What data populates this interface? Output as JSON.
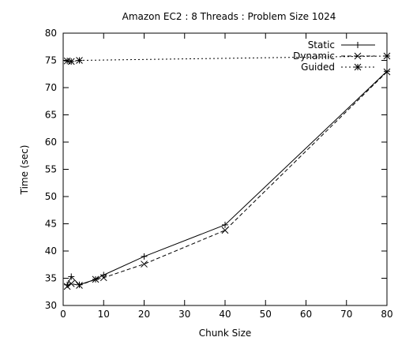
{
  "chart_data": {
    "type": "line",
    "title": "Amazon EC2 : 8 Threads : Problem Size 1024",
    "xlabel": "Chunk Size",
    "ylabel": "Time (sec)",
    "xlim": [
      0,
      80
    ],
    "ylim": [
      30,
      80
    ],
    "xticks": [
      0,
      10,
      20,
      30,
      40,
      50,
      60,
      70,
      80
    ],
    "yticks": [
      30,
      35,
      40,
      45,
      50,
      55,
      60,
      65,
      70,
      75,
      80
    ],
    "grid": false,
    "legend_position": "top-right",
    "series": [
      {
        "name": "Static",
        "marker": "+",
        "dash": "solid",
        "points": [
          [
            1,
            33.8
          ],
          [
            2,
            35.3
          ],
          [
            4,
            33.8
          ],
          [
            8,
            34.8
          ],
          [
            10,
            35.6
          ],
          [
            20,
            39.0
          ],
          [
            40,
            44.8
          ],
          [
            80,
            73.0
          ]
        ]
      },
      {
        "name": "Dynamic",
        "marker": "x",
        "dash": "dashed",
        "points": [
          [
            1,
            33.5
          ],
          [
            2,
            34.0
          ],
          [
            4,
            33.7
          ],
          [
            8,
            34.8
          ],
          [
            10,
            35.1
          ],
          [
            20,
            37.6
          ],
          [
            40,
            43.8
          ],
          [
            80,
            72.9
          ]
        ]
      },
      {
        "name": "Guided",
        "marker": "*",
        "dash": "dotted",
        "points": [
          [
            1,
            74.9
          ],
          [
            2,
            74.8
          ],
          [
            4,
            75.0
          ],
          [
            80,
            75.8
          ]
        ]
      }
    ]
  }
}
